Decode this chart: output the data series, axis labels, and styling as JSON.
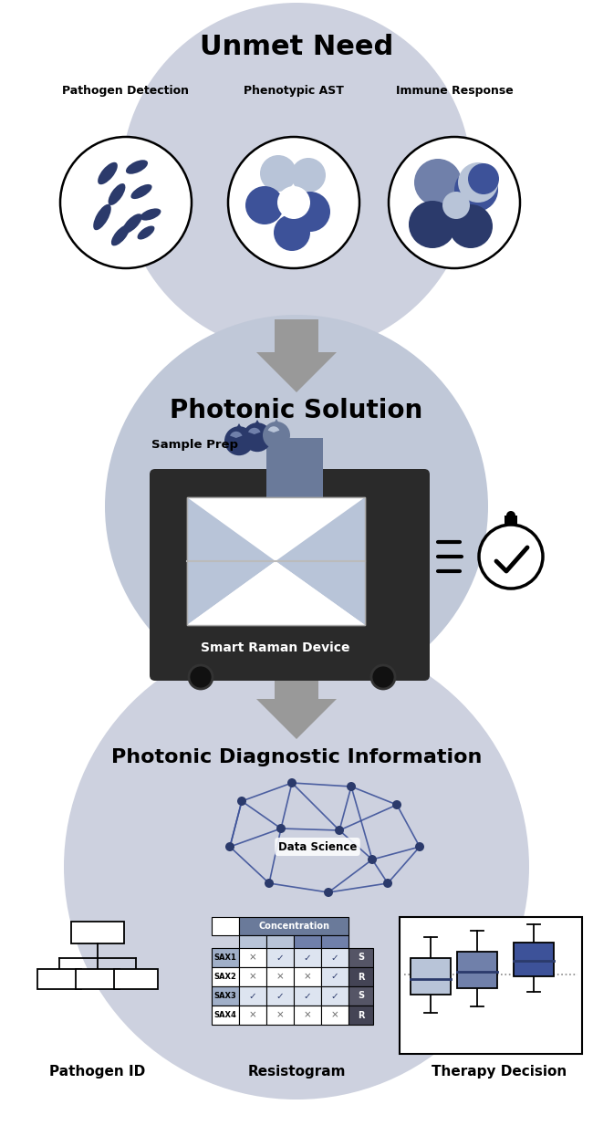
{
  "bg_color": "#ffffff",
  "bubble_color": "#cdd1df",
  "bubble_color2": "#c0c8d8",
  "dark_navy": "#2b3a6b",
  "medium_navy": "#3d5299",
  "light_navy": "#7080aa",
  "very_light_navy": "#a0afc8",
  "pale_navy": "#b8c4d8",
  "gray_arrow": "#999999",
  "device_dark": "#2a2a2a",
  "device_medium": "#555566",
  "device_light": "#6a7a9a",
  "title1": "Unmet Need",
  "title2": "Photonic Solution",
  "title3": "Photonic Diagnostic Information",
  "label1": "Pathogen Detection",
  "label2": "Phenotypic AST",
  "label3": "Immune Response",
  "label4": "Sample Prep",
  "label5": "Smart Raman Device",
  "label6": "Data Science",
  "label7": "Pathogen ID",
  "label8": "Resistogram",
  "label9": "Therapy Decision",
  "resistogram_rows": [
    "SAX1",
    "SAX2",
    "SAX3",
    "SAX4"
  ],
  "resistogram_sr": [
    "S",
    "R",
    "S",
    "R"
  ],
  "resistogram_checks": [
    [
      false,
      true,
      true,
      true
    ],
    [
      false,
      false,
      false,
      true
    ],
    [
      true,
      true,
      true,
      true
    ],
    [
      false,
      false,
      false,
      false
    ]
  ]
}
